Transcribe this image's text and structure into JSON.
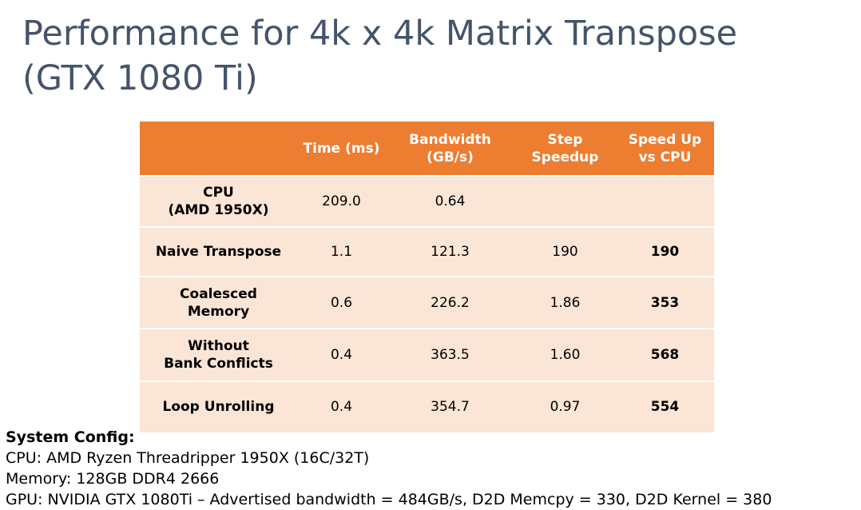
{
  "title": {
    "line1": "Performance for 4k x 4k Matrix Transpose",
    "line2": "(GTX 1080 Ti)"
  },
  "table": {
    "headers": [
      [
        ""
      ],
      [
        "Time (ms)"
      ],
      [
        "Bandwidth",
        "(GB/s)"
      ],
      [
        "Step",
        "Speedup"
      ],
      [
        "Speed Up",
        "vs CPU"
      ]
    ],
    "rows": [
      {
        "name": [
          "CPU",
          "(AMD 1950X)"
        ],
        "time": "209.0",
        "bandwidth": "0.64",
        "step": "",
        "speedup": ""
      },
      {
        "name": [
          "Naive Transpose"
        ],
        "time": "1.1",
        "bandwidth": "121.3",
        "step": "190",
        "speedup": "190"
      },
      {
        "name": [
          "Coalesced",
          "Memory"
        ],
        "time": "0.6",
        "bandwidth": "226.2",
        "step": "1.86",
        "speedup": "353"
      },
      {
        "name": [
          "Without",
          "Bank Conflicts"
        ],
        "time": "0.4",
        "bandwidth": "363.5",
        "step": "1.60",
        "speedup": "568"
      },
      {
        "name": [
          "Loop Unrolling"
        ],
        "time": "0.4",
        "bandwidth": "354.7",
        "step": "0.97",
        "speedup": "554"
      }
    ]
  },
  "config": {
    "heading": "System Config:",
    "cpu": "CPU: AMD Ryzen Threadripper 1950X (16C/32T)",
    "memory": "Memory: 128GB DDR4 2666",
    "gpu": "GPU: NVIDIA GTX 1080Ti – Advertised bandwidth = 484GB/s, D2D Memcpy = 330, D2D Kernel = 380"
  },
  "colors": {
    "title": "#44546a",
    "header_bg": "#ed7d31",
    "row_bg": "#fbe5d6"
  }
}
